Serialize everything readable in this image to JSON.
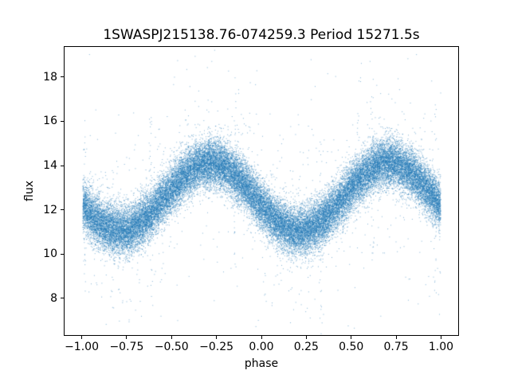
{
  "chart_data": {
    "type": "scatter",
    "title": "1SWASPJ215138.76-074259.3 Period 15271.5s",
    "xlabel": "phase",
    "ylabel": "flux",
    "xlim": [
      -1.1,
      1.1
    ],
    "ylim": [
      6.3,
      19.4
    ],
    "xtick_labels": [
      "−1.00",
      "−0.75",
      "−0.50",
      "−0.25",
      "0.00",
      "0.25",
      "0.50",
      "0.75",
      "1.00"
    ],
    "xtick_values": [
      -1.0,
      -0.75,
      -0.5,
      -0.25,
      0.0,
      0.25,
      0.5,
      0.75,
      1.0
    ],
    "ytick_labels": [
      "8",
      "10",
      "12",
      "14",
      "16",
      "18"
    ],
    "ytick_values": [
      8,
      10,
      12,
      14,
      16,
      18
    ],
    "grid": false,
    "legend": false,
    "background_color": "#ffffff",
    "marker_color": "#1f77b4",
    "marker_size_px": 1,
    "marker_alpha": 0.55,
    "n_points": 40000,
    "mean_curve": {
      "phase": [
        -1.0,
        -0.75,
        -0.5,
        -0.25,
        0.0,
        0.25,
        0.5,
        0.75,
        1.0
      ],
      "flux": [
        12.1,
        11.1,
        13.1,
        14.1,
        12.1,
        11.1,
        13.1,
        14.1,
        12.1
      ]
    },
    "model": {
      "description": "phase-folded light curve: sinusoidal mean flux with gaussian scatter and sparse outliers",
      "baseline_flux": 12.6,
      "amplitude": 1.55,
      "peak_phase": 0.71,
      "period_in_phase": 1.0,
      "noise_sigma": 0.55,
      "outlier_fraction": 0.025,
      "outlier_sigma": 2.3,
      "phase_range": [
        -1.0,
        1.0
      ],
      "streak_phases": [
        -0.99,
        -0.62,
        -0.15,
        0.33,
        0.62,
        0.97
      ],
      "streak_points": 22,
      "streak_extent": 4.4,
      "seed": 42
    }
  }
}
